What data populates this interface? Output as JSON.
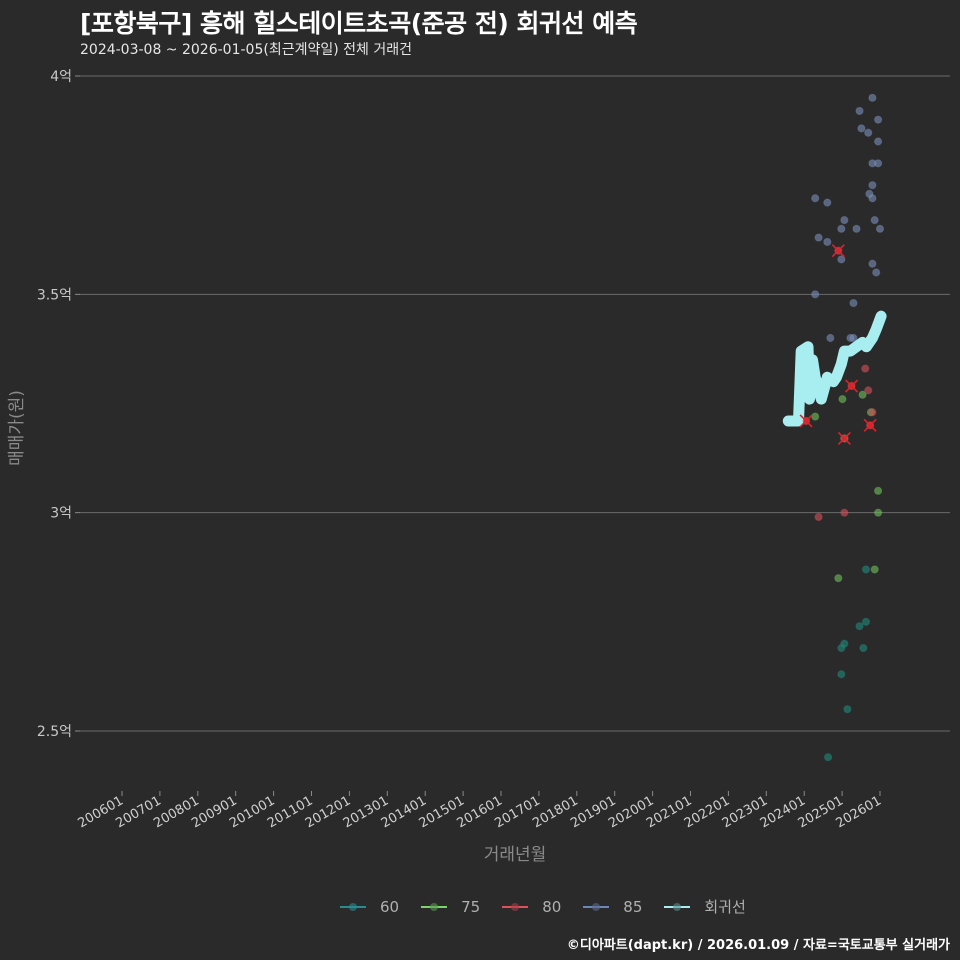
{
  "header": {
    "title": "[포항북구] 흥해 힐스테이트초곡(준공 전) 회귀선 예측",
    "subtitle": "2024-03-08 ~ 2026-01-05(최근계약일) 전체 거래건"
  },
  "footer": {
    "credit": "©디아파트(dapt.kr) / 2026.01.09 / 자료=국토교통부 실거래가"
  },
  "legend": {
    "items": [
      {
        "label": "60",
        "color": "#2a8a8f"
      },
      {
        "label": "75",
        "color": "#7bd36a"
      },
      {
        "label": "80",
        "color": "#e0505a"
      },
      {
        "label": "85",
        "color": "#6b86b8"
      },
      {
        "label": "회귀선",
        "color": "#a8eef0"
      }
    ]
  },
  "colors": {
    "background": "#2b2a2b",
    "grid": "#6a6a6a",
    "s60": "#1f8a7a",
    "s75": "#6fbf5a",
    "s80": "#d4505a",
    "s85": "#7a8fb8",
    "regression": "#a8eef0",
    "cancel_mark": "#e0202a"
  },
  "chart_data": {
    "type": "scatter",
    "title": "[포항북구] 흥해 힐스테이트초곡(준공 전) 회귀선 예측",
    "subtitle": "2024-03-08 ~ 2026-01-05(최근계약일) 전체 거래건",
    "xlabel": "거래년월",
    "ylabel": "매매가(원)",
    "x_ticks": [
      "200601",
      "200701",
      "200801",
      "200901",
      "201001",
      "201101",
      "201201",
      "201301",
      "201401",
      "201501",
      "201601",
      "201701",
      "201801",
      "201901",
      "202001",
      "202101",
      "202201",
      "202301",
      "202401",
      "202501",
      "202601"
    ],
    "y_ticks": [
      "2.5억",
      "3억",
      "3.5억",
      "4억"
    ],
    "y_tick_values": [
      2.5,
      3.0,
      3.5,
      4.0
    ],
    "xlim": [
      2004.9,
      2027.9
    ],
    "ylim": [
      2.37,
      4.02
    ],
    "grid": "horizontal",
    "legend_position": "bottom",
    "units": "억원",
    "series": [
      {
        "name": "60",
        "points": [
          {
            "x": 2025.63,
            "y": 2.87
          },
          {
            "x": 2025.63,
            "y": 2.75
          },
          {
            "x": 2025.46,
            "y": 2.74
          },
          {
            "x": 2025.06,
            "y": 2.7
          },
          {
            "x": 2024.98,
            "y": 2.69
          },
          {
            "x": 2025.56,
            "y": 2.69
          },
          {
            "x": 2024.98,
            "y": 2.63
          },
          {
            "x": 2025.14,
            "y": 2.55
          },
          {
            "x": 2024.63,
            "y": 2.44
          }
        ]
      },
      {
        "name": "75",
        "points": [
          {
            "x": 2025.95,
            "y": 3.05
          },
          {
            "x": 2025.95,
            "y": 3.0
          },
          {
            "x": 2025.86,
            "y": 2.87
          },
          {
            "x": 2024.9,
            "y": 2.85
          },
          {
            "x": 2025.54,
            "y": 3.27
          },
          {
            "x": 2025.01,
            "y": 3.26
          },
          {
            "x": 2024.29,
            "y": 3.22
          },
          {
            "x": 2025.76,
            "y": 3.23
          },
          {
            "x": 2025.06,
            "y": 3.17
          }
        ]
      },
      {
        "name": "80",
        "points": [
          {
            "x": 2024.38,
            "y": 2.99
          },
          {
            "x": 2025.06,
            "y": 3.0
          },
          {
            "x": 2025.61,
            "y": 3.33
          },
          {
            "x": 2025.25,
            "y": 3.29,
            "cancelled": true
          },
          {
            "x": 2025.69,
            "y": 3.28
          },
          {
            "x": 2024.05,
            "y": 3.21,
            "cancelled": true
          },
          {
            "x": 2025.8,
            "y": 3.23
          },
          {
            "x": 2025.74,
            "y": 3.2,
            "cancelled": true
          },
          {
            "x": 2025.06,
            "y": 3.17,
            "cancelled": true
          },
          {
            "x": 2024.9,
            "y": 3.6,
            "cancelled": true
          }
        ]
      },
      {
        "name": "85",
        "points": [
          {
            "x": 2025.8,
            "y": 3.95
          },
          {
            "x": 2025.46,
            "y": 3.92
          },
          {
            "x": 2025.95,
            "y": 3.9
          },
          {
            "x": 2025.51,
            "y": 3.88
          },
          {
            "x": 2025.69,
            "y": 3.87
          },
          {
            "x": 2025.95,
            "y": 3.85
          },
          {
            "x": 2025.8,
            "y": 3.8
          },
          {
            "x": 2025.95,
            "y": 3.8
          },
          {
            "x": 2025.8,
            "y": 3.75
          },
          {
            "x": 2024.29,
            "y": 3.72
          },
          {
            "x": 2025.72,
            "y": 3.73
          },
          {
            "x": 2025.8,
            "y": 3.72
          },
          {
            "x": 2024.61,
            "y": 3.71
          },
          {
            "x": 2025.06,
            "y": 3.67
          },
          {
            "x": 2025.86,
            "y": 3.67
          },
          {
            "x": 2024.98,
            "y": 3.65
          },
          {
            "x": 2025.38,
            "y": 3.65
          },
          {
            "x": 2026.0,
            "y": 3.65
          },
          {
            "x": 2024.38,
            "y": 3.63
          },
          {
            "x": 2024.61,
            "y": 3.62
          },
          {
            "x": 2024.98,
            "y": 3.58
          },
          {
            "x": 2025.8,
            "y": 3.57
          },
          {
            "x": 2025.9,
            "y": 3.55
          },
          {
            "x": 2024.29,
            "y": 3.5
          },
          {
            "x": 2025.3,
            "y": 3.48
          },
          {
            "x": 2024.69,
            "y": 3.4
          },
          {
            "x": 2025.22,
            "y": 3.4
          },
          {
            "x": 2025.3,
            "y": 3.4
          }
        ]
      },
      {
        "name": "회귀선",
        "type": "line",
        "points": [
          {
            "x": 2023.58,
            "y": 3.21
          },
          {
            "x": 2023.85,
            "y": 3.21
          },
          {
            "x": 2023.92,
            "y": 3.37
          },
          {
            "x": 2024.1,
            "y": 3.38
          },
          {
            "x": 2024.14,
            "y": 3.26
          },
          {
            "x": 2024.22,
            "y": 3.35
          },
          {
            "x": 2024.29,
            "y": 3.31
          },
          {
            "x": 2024.45,
            "y": 3.26
          },
          {
            "x": 2024.61,
            "y": 3.31
          },
          {
            "x": 2024.77,
            "y": 3.3
          },
          {
            "x": 2024.85,
            "y": 3.31
          },
          {
            "x": 2024.98,
            "y": 3.34
          },
          {
            "x": 2025.06,
            "y": 3.37
          },
          {
            "x": 2025.22,
            "y": 3.37
          },
          {
            "x": 2025.38,
            "y": 3.38
          },
          {
            "x": 2025.54,
            "y": 3.39
          },
          {
            "x": 2025.64,
            "y": 3.38
          },
          {
            "x": 2025.8,
            "y": 3.4
          },
          {
            "x": 2025.9,
            "y": 3.42
          },
          {
            "x": 2026.03,
            "y": 3.45
          }
        ]
      }
    ]
  }
}
